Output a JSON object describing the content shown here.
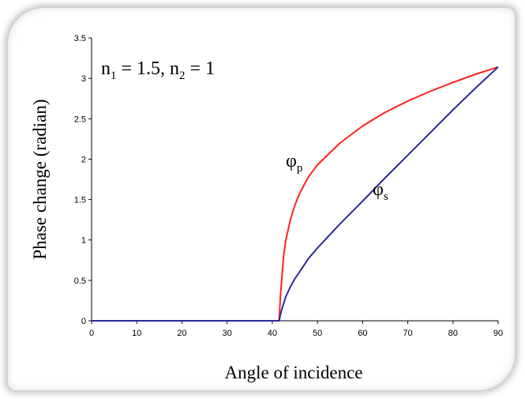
{
  "chart_data": {
    "type": "line",
    "title": "",
    "annotation": {
      "n1_symbol": "n",
      "n1_sub": "1",
      "n1_value": " = 1.5, ",
      "n2_symbol": "n",
      "n2_sub": "2",
      "n2_value": " = 1"
    },
    "xlabel": "Angle of incidence",
    "ylabel": "Phase change (radian)",
    "xlim": [
      0,
      90
    ],
    "ylim": [
      0,
      3.5
    ],
    "x_ticks": [
      "0",
      "10",
      "20",
      "30",
      "40",
      "50",
      "60",
      "70",
      "80",
      "90"
    ],
    "y_ticks": [
      "0",
      "0.5",
      "1",
      "1.5",
      "2",
      "2.5",
      "3",
      "3.5"
    ],
    "series": [
      {
        "name_symbol": "φ",
        "name_sub": "p",
        "color": "#ff2020",
        "x": [
          0,
          10,
          20,
          30,
          40,
          41.5,
          41.8,
          42.5,
          43,
          44,
          45,
          46,
          48,
          50,
          55,
          60,
          65,
          70,
          75,
          80,
          85,
          90
        ],
        "y": [
          0,
          0,
          0,
          0,
          0,
          0,
          0.3,
          0.8,
          1.0,
          1.25,
          1.43,
          1.57,
          1.78,
          1.93,
          2.2,
          2.41,
          2.58,
          2.72,
          2.84,
          2.95,
          3.05,
          3.14
        ]
      },
      {
        "name_symbol": "φ",
        "name_sub": "s",
        "color": "#2a2a9a",
        "x": [
          0,
          10,
          20,
          30,
          40,
          41.5,
          42,
          43,
          44,
          45,
          46,
          48,
          50,
          55,
          60,
          65,
          70,
          75,
          80,
          85,
          90
        ],
        "y": [
          0,
          0,
          0,
          0,
          0,
          0,
          0.12,
          0.3,
          0.42,
          0.52,
          0.6,
          0.77,
          0.9,
          1.2,
          1.48,
          1.77,
          2.05,
          2.33,
          2.61,
          2.88,
          3.14
        ]
      }
    ],
    "grid": false,
    "legend": "none"
  }
}
